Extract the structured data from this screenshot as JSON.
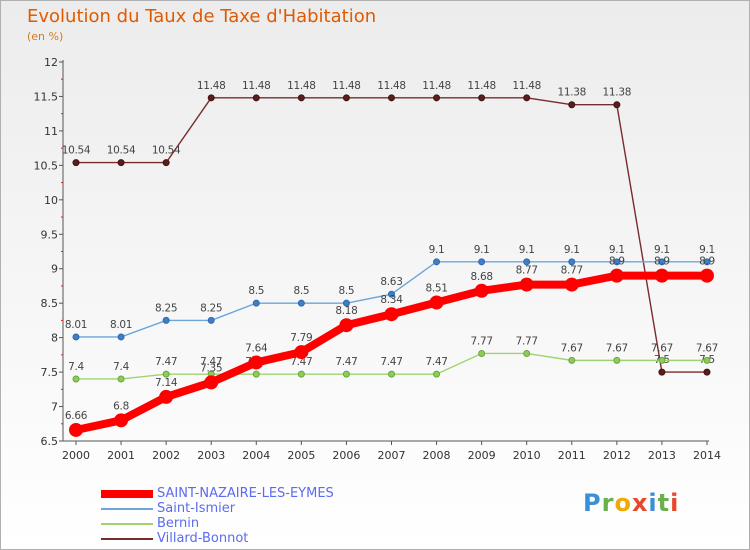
{
  "title": "Evolution du Taux de Taxe d'Habitation",
  "subtitle": "(en %)",
  "logo_text": "Proxiti",
  "chart_data": {
    "type": "line",
    "x": [
      "2000",
      "2001",
      "2002",
      "2003",
      "2004",
      "2005",
      "2006",
      "2007",
      "2008",
      "2009",
      "2010",
      "2011",
      "2012",
      "2013",
      "2014"
    ],
    "ylim": [
      6.5,
      12
    ],
    "yticks": [
      "6.5",
      "7",
      "7.5",
      "8",
      "8.5",
      "9",
      "9.5",
      "10",
      "10.5",
      "11",
      "11.5",
      "12"
    ],
    "grid": false,
    "legend_position": "bottom-left",
    "series": [
      {
        "name": "SAINT-NAZAIRE-LES-EYMES",
        "color": "#ff0000",
        "values": [
          6.66,
          6.8,
          7.14,
          7.35,
          7.64,
          7.79,
          8.18,
          8.34,
          8.51,
          8.68,
          8.77,
          8.77,
          8.9,
          8.9,
          8.9
        ],
        "labels": [
          "6.66",
          "6.8",
          "7.14",
          "7.35",
          "7.64",
          "7.79",
          "8.18",
          "8.34",
          "8.51",
          "8.68",
          "8.77",
          "8.77",
          "8.9",
          "8.9",
          "8.9"
        ]
      },
      {
        "name": "Saint-Ismier",
        "color": "#6ea6d8",
        "values": [
          8.01,
          8.01,
          8.25,
          8.25,
          8.5,
          8.5,
          8.5,
          8.63,
          9.1,
          9.1,
          9.1,
          9.1,
          9.1,
          9.1,
          9.1
        ],
        "labels": [
          "8.01",
          "8.01",
          "8.25",
          "8.25",
          "8.5",
          "8.5",
          "8.5",
          "8.63",
          "9.1",
          "9.1",
          "9.1",
          "9.1",
          "9.1",
          "9.1",
          "9.1"
        ]
      },
      {
        "name": "Bernin",
        "color": "#9ed46f",
        "values": [
          7.4,
          7.4,
          7.47,
          7.47,
          7.47,
          7.47,
          7.47,
          7.47,
          7.47,
          7.77,
          7.77,
          7.67,
          7.67,
          7.67,
          7.67
        ],
        "labels": [
          "7.4",
          "7.4",
          "7.47",
          "7.47",
          "7.47",
          "7.47",
          "7.47",
          "7.47",
          "7.47",
          "7.77",
          "7.77",
          "7.67",
          "7.67",
          "7.67",
          "7.67"
        ]
      },
      {
        "name": "Villard-Bonnot",
        "color": "#7a2b2b",
        "values": [
          10.54,
          10.54,
          10.54,
          11.48,
          11.48,
          11.48,
          11.48,
          11.48,
          11.48,
          11.48,
          11.48,
          11.38,
          11.38,
          7.5,
          7.5
        ],
        "labels": [
          "10.54",
          "10.54",
          "10.54",
          "11.48",
          "11.48",
          "11.48",
          "11.48",
          "11.48",
          "11.48",
          "11.48",
          "11.48",
          "11.38",
          "11.38",
          "7.5",
          "7.5"
        ]
      }
    ]
  }
}
